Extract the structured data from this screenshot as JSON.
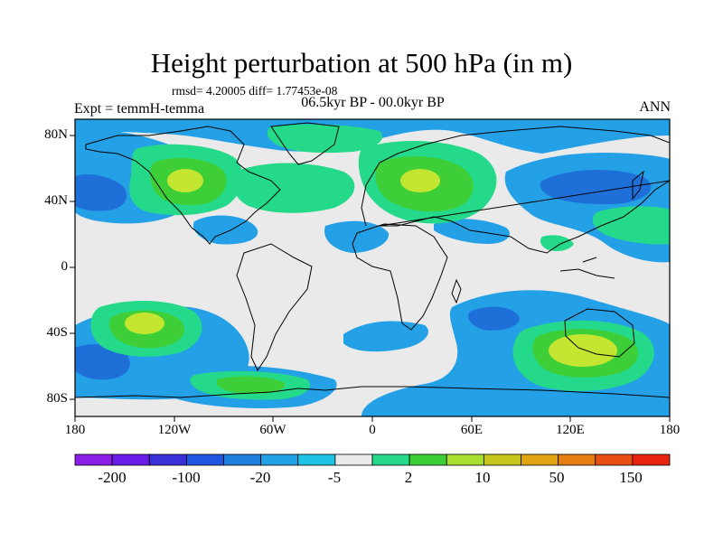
{
  "title": "Height perturbation at 500 hPa (in m)",
  "stats": "rmsd= 4.20005 diff= 1.77453e-08",
  "experiment": "Expt = temmH-temma",
  "period": "06.5kyr BP - 00.0kyr BP",
  "season": "ANN",
  "lat_labels": [
    "80N",
    "40N",
    "0",
    "40S",
    "80S"
  ],
  "lon_labels": [
    "180",
    "120W",
    "60W",
    "0",
    "60E",
    "120E",
    "180"
  ],
  "colorbar": {
    "labels": [
      "-200",
      "-100",
      "-20",
      "-5",
      "2",
      "10",
      "50",
      "150"
    ],
    "colors": [
      "#8a1ee6",
      "#6a1de8",
      "#3b2fd8",
      "#1f55e0",
      "#1e7fdc",
      "#21a2e6",
      "#1ec3e6",
      "#eaeaea",
      "#25d98a",
      "#3ecf38",
      "#a8e030",
      "#c6c81e",
      "#e2a512",
      "#e47d12",
      "#e84e12",
      "#e82312"
    ]
  },
  "palette": {
    "blue_dark": "#1e70d8",
    "blue": "#23a0e6",
    "cyan": "#1ec3e6",
    "neutral": "#eaeaea",
    "teal_green": "#25d98a",
    "green": "#3ecf38",
    "yellow_green": "#c4e630"
  }
}
